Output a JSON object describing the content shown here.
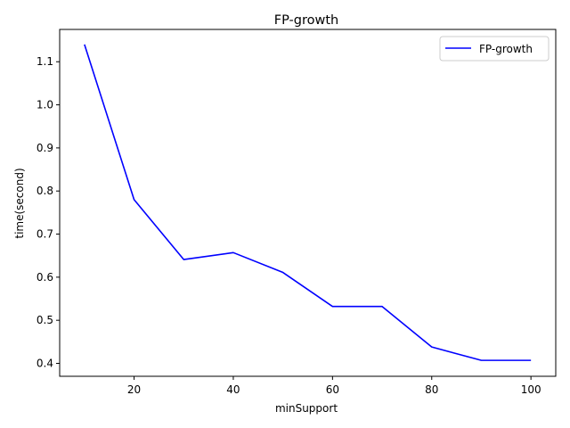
{
  "chart_data": {
    "type": "line",
    "title": "FP-growth",
    "xlabel": "minSupport",
    "ylabel": "time(second)",
    "xlim": [
      5,
      105
    ],
    "ylim": [
      0.37,
      1.175
    ],
    "xticks": [
      20,
      40,
      60,
      80,
      100
    ],
    "yticks": [
      0.4,
      0.5,
      0.6,
      0.7,
      0.8,
      0.9,
      1.0,
      1.1
    ],
    "grid": false,
    "legend_position": "top-right",
    "series": [
      {
        "name": "FP-growth",
        "color": "#0000ff",
        "x": [
          10,
          20,
          30,
          40,
          50,
          60,
          70,
          80,
          90,
          100
        ],
        "y": [
          1.14,
          0.78,
          0.641,
          0.657,
          0.611,
          0.532,
          0.532,
          0.438,
          0.407,
          0.407
        ]
      }
    ]
  }
}
